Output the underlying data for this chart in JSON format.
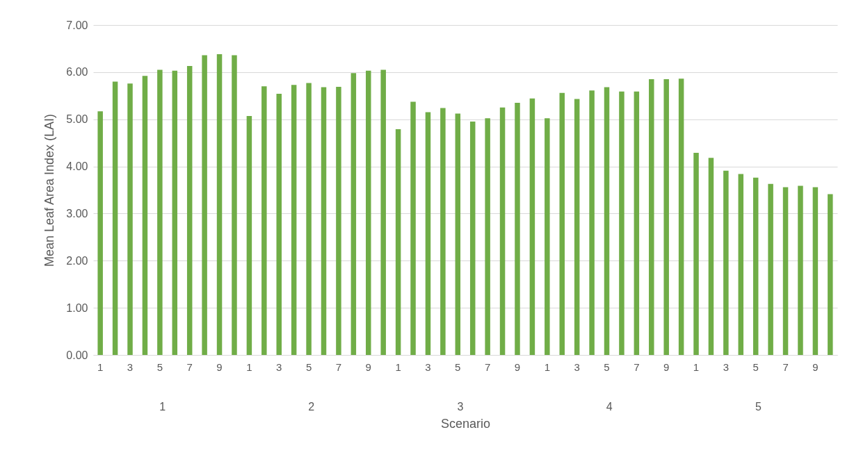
{
  "chart_data": {
    "type": "bar",
    "xlabel": "Scenario",
    "ylabel": "Mean Leaf Area Index (LAI)",
    "categories": [
      "1",
      null,
      "3",
      null,
      "5",
      null,
      "7",
      null,
      "9",
      null,
      "1",
      null,
      "3",
      null,
      "5",
      null,
      "7",
      null,
      "9",
      null,
      "1",
      null,
      "3",
      null,
      "5",
      null,
      "7",
      null,
      "9",
      null,
      "1",
      null,
      "3",
      null,
      "5",
      null,
      "7",
      null,
      "9",
      null,
      "1",
      null,
      "3",
      null,
      "5",
      null,
      "7",
      null,
      "9",
      null
    ],
    "values": [
      5.17,
      5.8,
      5.76,
      5.92,
      6.05,
      6.03,
      6.13,
      6.36,
      6.38,
      6.36,
      5.07,
      5.7,
      5.54,
      5.73,
      5.77,
      5.68,
      5.69,
      5.98,
      6.03,
      6.05,
      4.79,
      5.37,
      5.15,
      5.24,
      5.12,
      4.95,
      5.02,
      5.25,
      5.35,
      5.44,
      5.02,
      5.56,
      5.43,
      5.61,
      5.68,
      5.59,
      5.59,
      5.85,
      5.85,
      5.86,
      4.29,
      4.18,
      3.91,
      3.84,
      3.76,
      3.63,
      3.56,
      3.59,
      3.56,
      3.41
    ],
    "color": "#70ad47",
    "ylim": [
      0,
      7
    ],
    "yticks": [
      {
        "value": 0,
        "label": "0.00"
      },
      {
        "value": 1,
        "label": "1.00"
      },
      {
        "value": 2,
        "label": "2.00"
      },
      {
        "value": 3,
        "label": "3.00"
      },
      {
        "value": 4,
        "label": "4.00"
      },
      {
        "value": 5,
        "label": "5.00"
      },
      {
        "value": 6,
        "label": "6.00"
      },
      {
        "value": 7,
        "label": "7.00"
      }
    ],
    "grid": "y",
    "annotations": [
      "1",
      "2",
      "3",
      "4",
      "5"
    ]
  }
}
